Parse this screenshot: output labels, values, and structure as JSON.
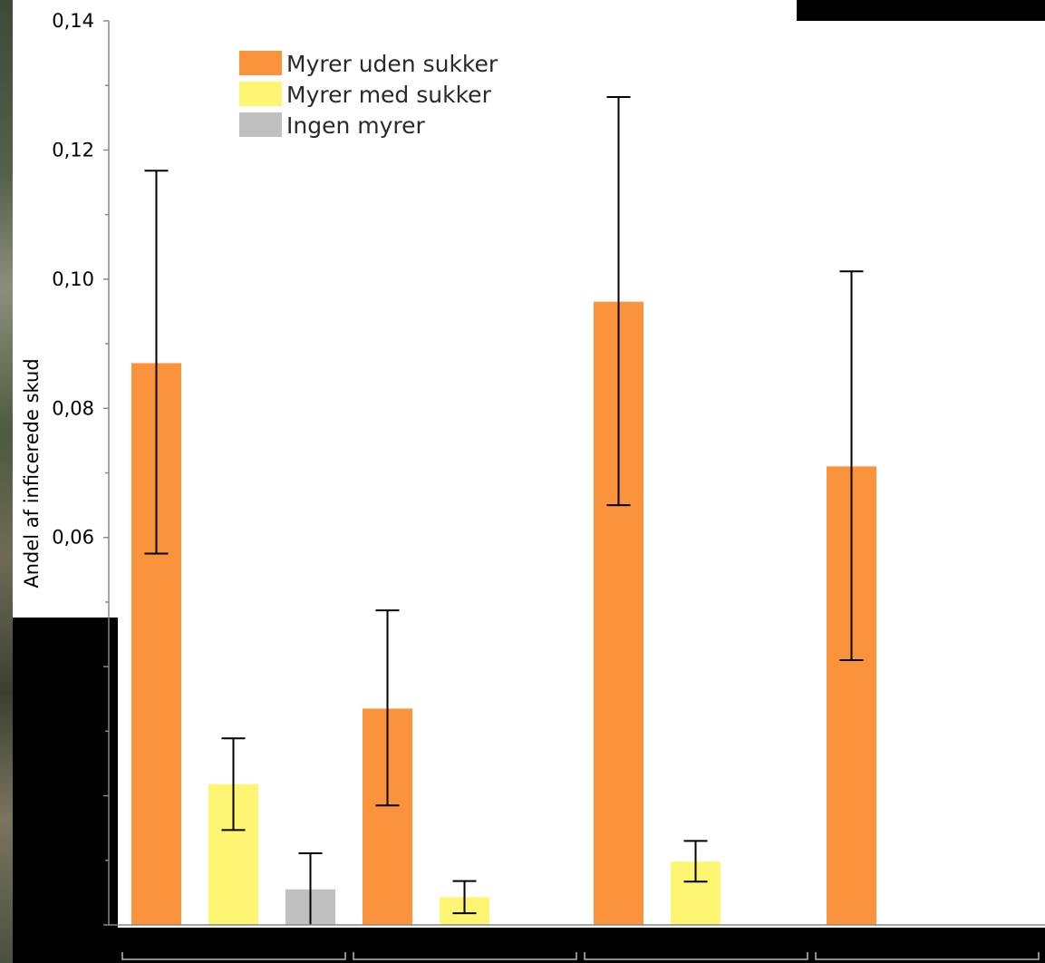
{
  "chart_data": {
    "type": "bar",
    "title": "",
    "xlabel": "",
    "ylabel": "Andel af inficerede skud",
    "ylim": [
      0,
      0.14
    ],
    "y_ticks": [
      "0,14",
      "0,12",
      "0,10",
      "0,08",
      "0,06"
    ],
    "grid": false,
    "legend_position": "top-left",
    "groups": 4,
    "series": [
      {
        "name": "Myrer uden sukker",
        "color": "#fb923c",
        "values": [
          0.087,
          0.0335,
          0.0965,
          0.071
        ],
        "error_low": [
          0.0575,
          0.0185,
          0.065,
          0.041
        ],
        "error_high": [
          0.1168,
          0.0487,
          0.1282,
          0.1012
        ]
      },
      {
        "name": "Myrer med sukker",
        "color": "#fef572",
        "values": [
          0.0218,
          0.0043,
          0.0098,
          null
        ],
        "error_low": [
          0.0147,
          0.0018,
          0.0067,
          null
        ],
        "error_high": [
          0.0289,
          0.0068,
          0.013,
          null
        ]
      },
      {
        "name": "Ingen myrer",
        "color": "#c0c0c0",
        "values": [
          0.0055,
          null,
          null,
          null
        ],
        "error_low": [
          0.0,
          null,
          null,
          null
        ],
        "error_high": [
          0.0111,
          null,
          null,
          null
        ]
      }
    ]
  }
}
